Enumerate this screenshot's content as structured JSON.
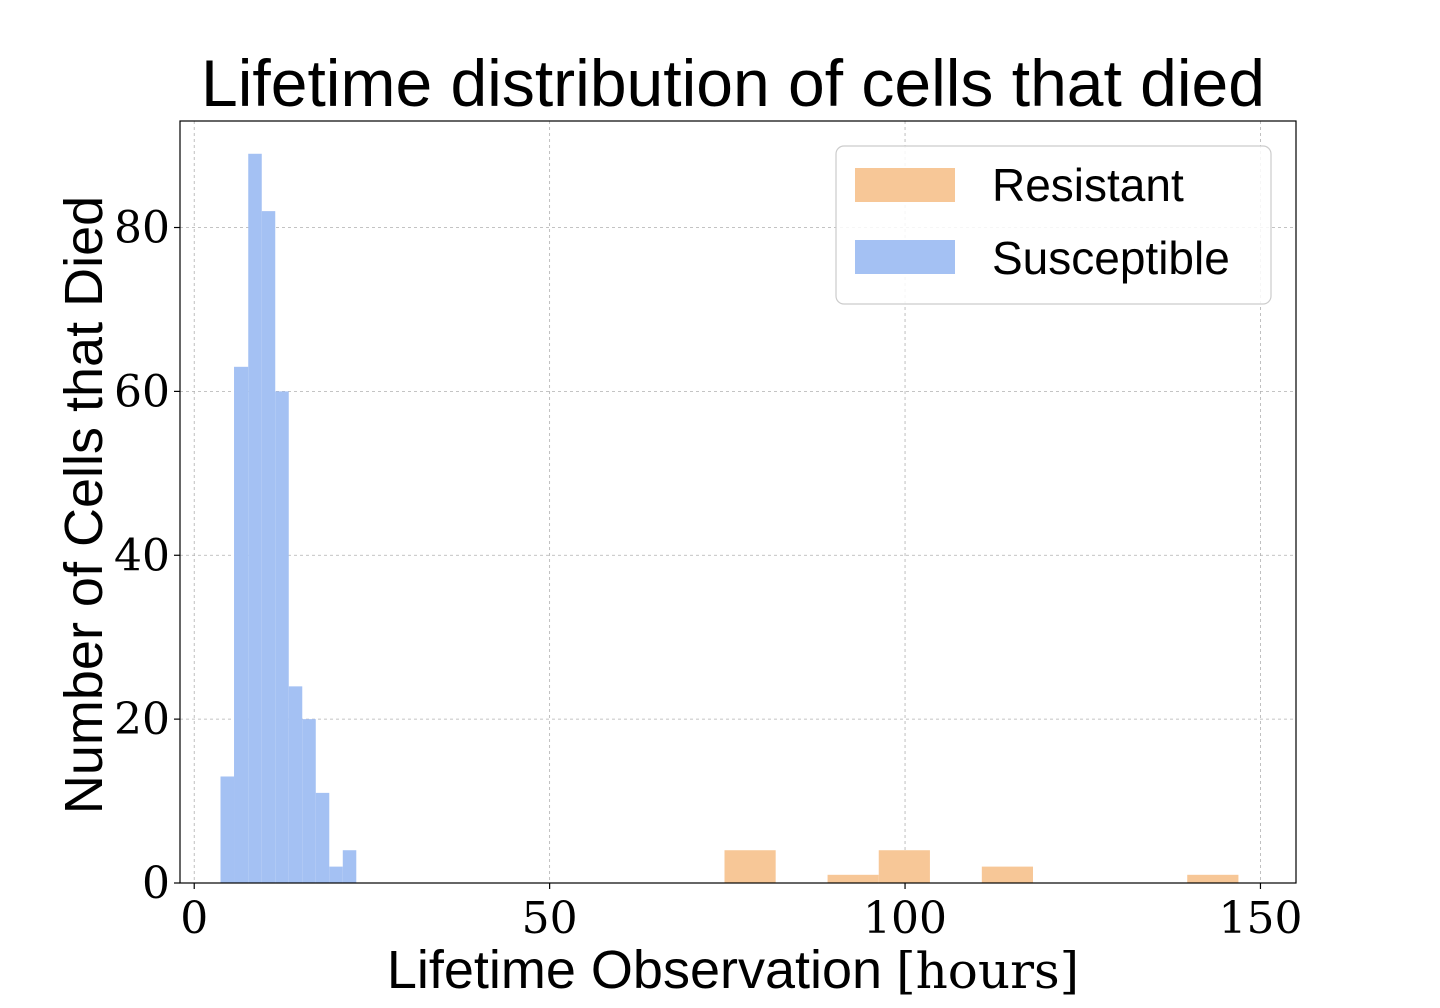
{
  "chart_data": {
    "type": "bar",
    "title": "Lifetime distribution of cells that died",
    "xlabel": "Lifetime Observation",
    "xlabel_unit": "[hours]",
    "ylabel": "Number of Cells that Died",
    "xlim": [
      -2,
      155
    ],
    "ylim": [
      0,
      93
    ],
    "xticks": [
      0,
      50,
      100,
      150
    ],
    "yticks": [
      0,
      20,
      40,
      60,
      80
    ],
    "grid": true,
    "legend_position": "top-right",
    "series": [
      {
        "name": "Resistant",
        "color": "#f7c797",
        "bins": [
          {
            "x0": 74.6,
            "x1": 81.8,
            "value": 4
          },
          {
            "x0": 89.1,
            "x1": 96.3,
            "value": 1
          },
          {
            "x0": 96.3,
            "x1": 103.5,
            "value": 4
          },
          {
            "x0": 110.8,
            "x1": 118.0,
            "value": 2
          },
          {
            "x0": 139.7,
            "x1": 146.9,
            "value": 1
          }
        ]
      },
      {
        "name": "Susceptible",
        "color": "#a4c1f3",
        "bins": [
          {
            "x0": 3.7,
            "x1": 5.6,
            "value": 13
          },
          {
            "x0": 5.6,
            "x1": 7.6,
            "value": 63
          },
          {
            "x0": 7.6,
            "x1": 9.5,
            "value": 89
          },
          {
            "x0": 9.5,
            "x1": 11.4,
            "value": 82
          },
          {
            "x0": 11.4,
            "x1": 13.3,
            "value": 60
          },
          {
            "x0": 13.3,
            "x1": 15.2,
            "value": 24
          },
          {
            "x0": 15.2,
            "x1": 17.1,
            "value": 20
          },
          {
            "x0": 17.1,
            "x1": 19.0,
            "value": 11
          },
          {
            "x0": 19.0,
            "x1": 20.9,
            "value": 2
          },
          {
            "x0": 20.9,
            "x1": 22.8,
            "value": 4
          }
        ]
      }
    ]
  }
}
